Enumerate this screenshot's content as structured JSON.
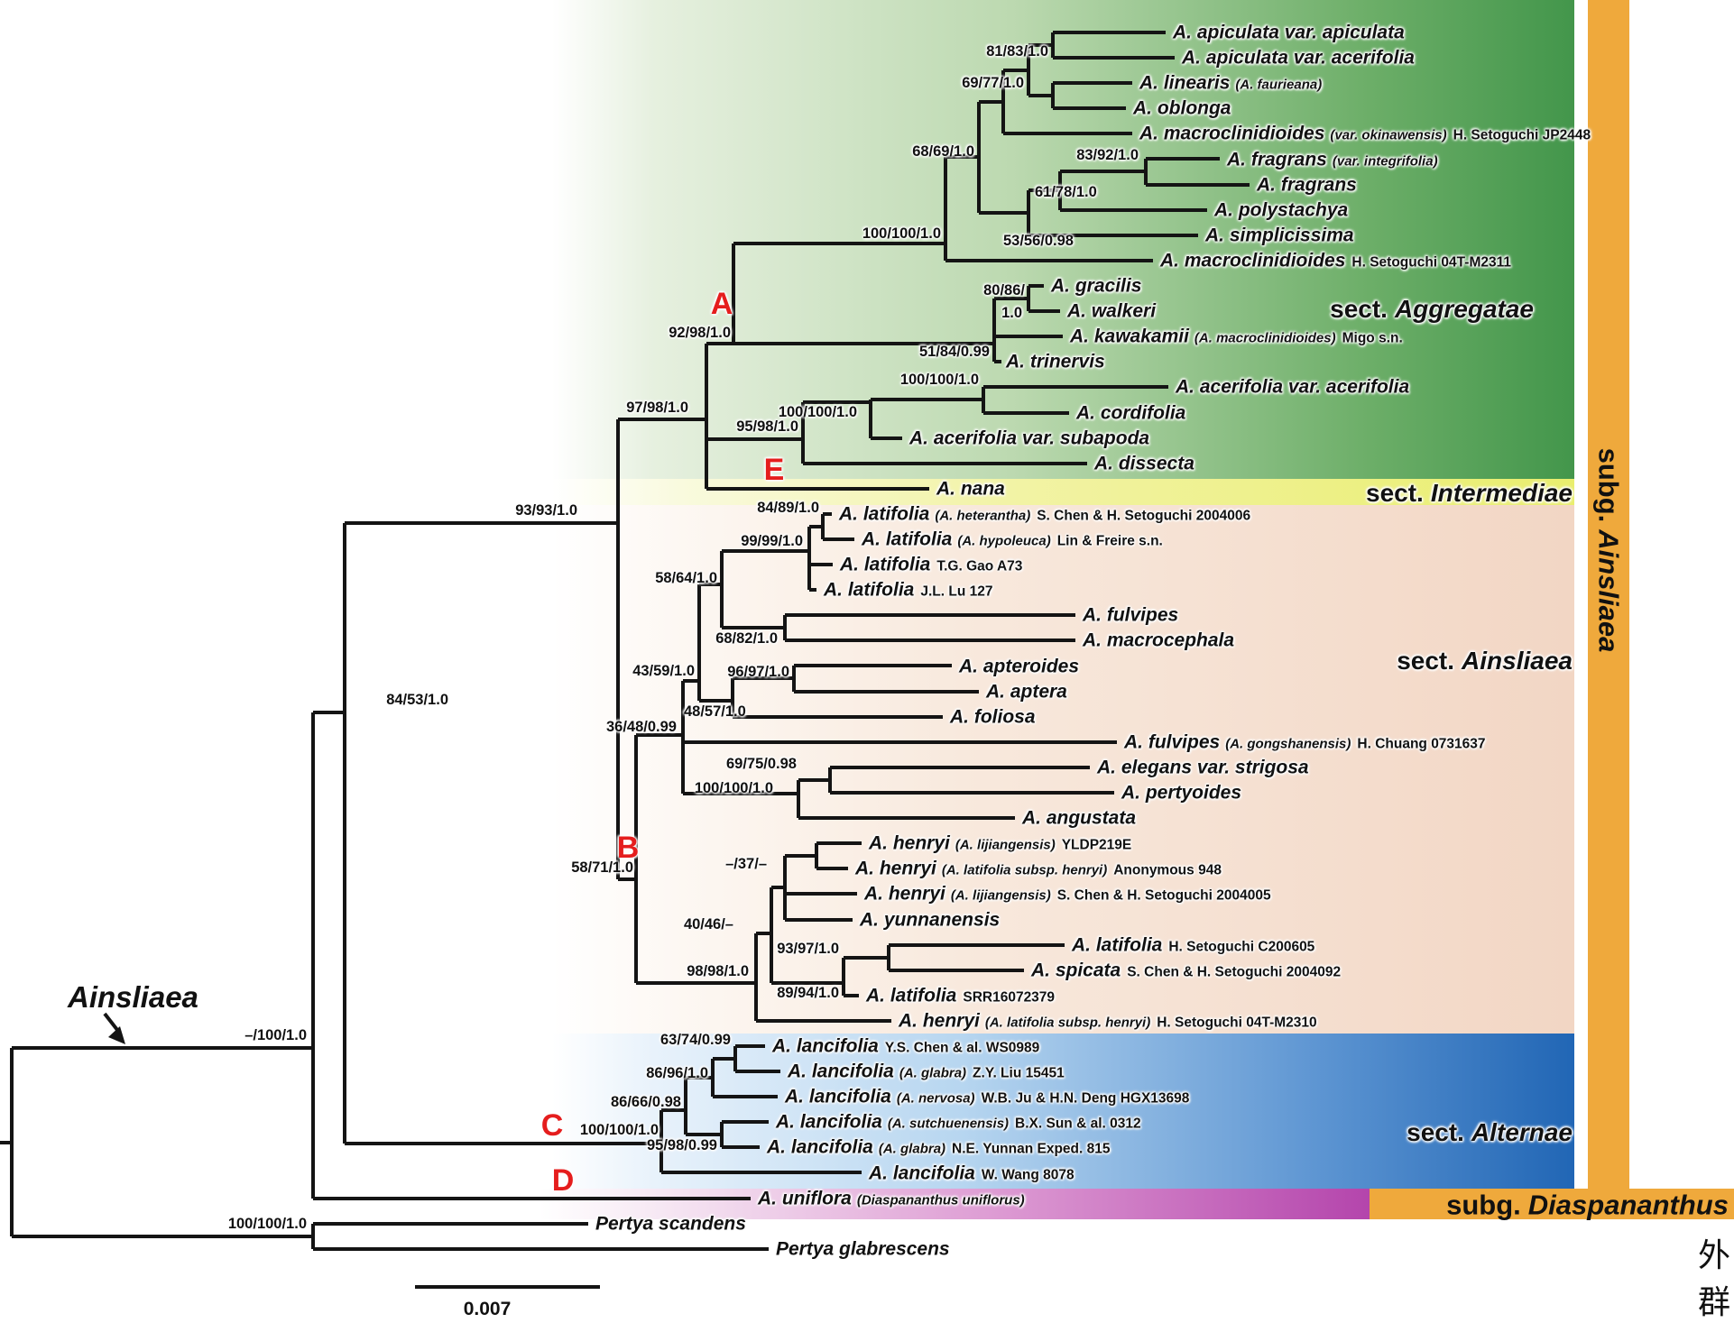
{
  "figure": {
    "genus_label": "Ainsliaea",
    "scale_bar_value": "0.007",
    "outgroup_label": "外群"
  },
  "colors": {
    "aggregatae": "#43964b",
    "intermediae": "#e9ee6e",
    "ainsliaea_sect": "#f2d6c4",
    "alternae": "#2166b5",
    "diaspananthus": "#b445ac",
    "subg_bar": "#efa93c",
    "letter_red": "#e51d1d",
    "branch": "#141414"
  },
  "sections": [
    {
      "prefix": "sect.",
      "name": "Aggregatae"
    },
    {
      "prefix": "sect.",
      "name": "Intermediae"
    },
    {
      "prefix": "sect.",
      "name": "Ainsliaea"
    },
    {
      "prefix": "sect.",
      "name": "Alternae"
    }
  ],
  "subgenera": [
    {
      "prefix": "subg.",
      "name": "Ainsliaea"
    },
    {
      "prefix": "subg.",
      "name": "Diaspananthus"
    }
  ],
  "clade_letters": [
    "A",
    "B",
    "C",
    "D",
    "E"
  ],
  "supports": [
    "81/83/1.0",
    "69/77/1.0",
    "68/69/1.0",
    "83/92/1.0",
    "61/78/1.0",
    "53/56/0.98",
    "100/100/1.0",
    "80/86/",
    "1.0",
    "51/84/0.99",
    "92/98/1.0",
    "97/98/1.0",
    "95/98/1.0",
    "100/100/1.0",
    "100/100/1.0",
    "84/89/1.0",
    "99/99/1.0",
    "58/64/1.0",
    "68/82/1.0",
    "43/59/1.0",
    "96/97/1.0",
    "48/57/1.0",
    "36/48/0.99",
    "69/75/0.98",
    "100/100/1.0",
    "58/71/1.0",
    "–/37/–",
    "40/46/–",
    "93/97/1.0",
    "89/94/1.0",
    "98/98/1.0",
    "63/74/0.99",
    "86/96/1.0",
    "86/66/0.98",
    "100/100/1.0",
    "95/98/0.99",
    "84/53/1.0",
    "93/93/1.0",
    "–/100/1.0",
    "100/100/1.0"
  ],
  "tips": [
    {
      "main": "A. apiculata var. apiculata"
    },
    {
      "main": "A. apiculata var. acerifolia"
    },
    {
      "main": "A. linearis",
      "syn": "(A. faurieana)"
    },
    {
      "main": "A. oblonga"
    },
    {
      "main": "A. macroclinidioides",
      "syn": "(var. okinawensis)",
      "voucher": "H. Setoguchi JP2448"
    },
    {
      "main": "A. fragrans",
      "syn": "(var. integrifolia)"
    },
    {
      "main": "A. fragrans"
    },
    {
      "main": "A. polystachya"
    },
    {
      "main": "A. simplicissima"
    },
    {
      "main": "A. macroclinidioides",
      "voucher": "H. Setoguchi 04T-M2311"
    },
    {
      "main": "A. gracilis"
    },
    {
      "main": "A. walkeri"
    },
    {
      "main": "A. kawakamii",
      "syn": "(A. macroclinidioides)",
      "voucher": "Migo s.n."
    },
    {
      "main": "A. trinervis"
    },
    {
      "main": "A. acerifolia var. acerifolia"
    },
    {
      "main": "A. cordifolia"
    },
    {
      "main": "A. acerifolia var. subapoda"
    },
    {
      "main": "A. dissecta"
    },
    {
      "main": "A. nana"
    },
    {
      "main": "A. latifolia",
      "syn": "(A. heterantha)",
      "voucher": "S. Chen & H. Setoguchi 2004006"
    },
    {
      "main": "A. latifolia",
      "syn": "(A. hypoleuca)",
      "voucher": "Lin & Freire s.n."
    },
    {
      "main": "A. latifolia",
      "voucher": "T.G. Gao A73"
    },
    {
      "main": "A. latifolia",
      "voucher": "J.L. Lu 127"
    },
    {
      "main": "A. fulvipes"
    },
    {
      "main": "A. macrocephala"
    },
    {
      "main": "A. apteroides"
    },
    {
      "main": "A. aptera"
    },
    {
      "main": "A. foliosa"
    },
    {
      "main": "A. fulvipes",
      "syn": "(A. gongshanensis)",
      "voucher": "H. Chuang 0731637"
    },
    {
      "main": "A. elegans var. strigosa"
    },
    {
      "main": "A. pertyoides"
    },
    {
      "main": "A. angustata"
    },
    {
      "main": "A. henryi",
      "syn": "(A. lijiangensis)",
      "voucher": "YLDP219E"
    },
    {
      "main": "A. henryi",
      "syn": "(A. latifolia subsp. henryi)",
      "voucher": "Anonymous 948"
    },
    {
      "main": "A. henryi",
      "syn": "(A. lijiangensis)",
      "voucher": "S. Chen & H. Setoguchi 2004005"
    },
    {
      "main": "A. yunnanensis"
    },
    {
      "main": "A. latifolia",
      "voucher": "H. Setoguchi C200605"
    },
    {
      "main": "A. spicata",
      "voucher": "S. Chen & H. Setoguchi 2004092"
    },
    {
      "main": "A. latifolia",
      "voucher": "SRR16072379"
    },
    {
      "main": "A. henryi",
      "syn": "(A. latifolia subsp. henryi)",
      "voucher": "H. Setoguchi 04T-M2310"
    },
    {
      "main": "A. lancifolia",
      "voucher": "Y.S. Chen & al. WS0989"
    },
    {
      "main": "A. lancifolia",
      "syn": "(A. glabra)",
      "voucher": "Z.Y. Liu 15451"
    },
    {
      "main": "A. lancifolia",
      "syn": "(A. nervosa)",
      "voucher": "W.B. Ju & H.N. Deng HGX13698"
    },
    {
      "main": "A. lancifolia",
      "syn": "(A. sutchuenensis)",
      "voucher": "B.X. Sun & al. 0312"
    },
    {
      "main": "A. lancifolia",
      "syn": "(A. glabra)",
      "voucher": "N.E. Yunnan Exped. 815"
    },
    {
      "main": "A. lancifolia",
      "voucher": "W. Wang 8078"
    },
    {
      "main": "A. uniflora",
      "syn": "(Diaspananthus uniflorus)"
    },
    {
      "main": "Pertya scandens"
    },
    {
      "main": "Pertya glabrescens"
    }
  ]
}
